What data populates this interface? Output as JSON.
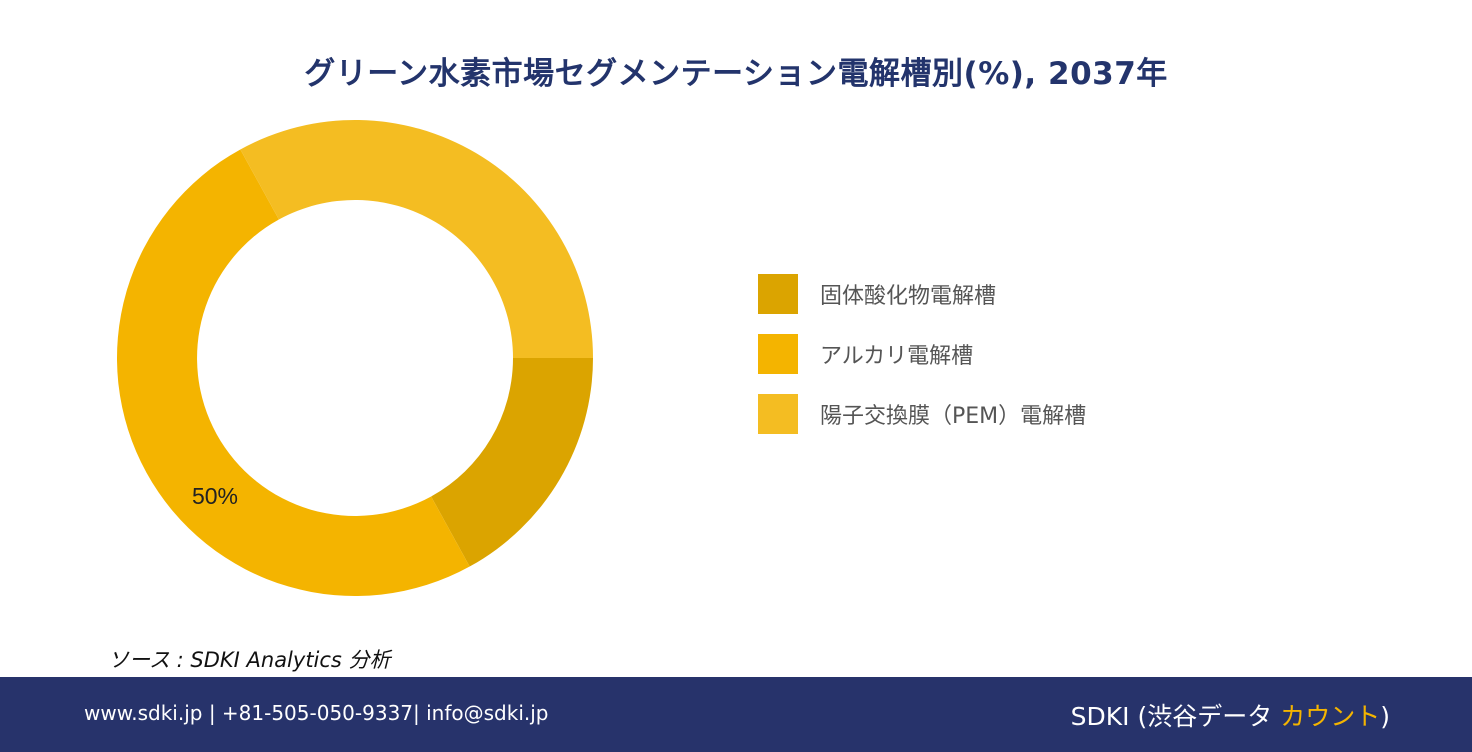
{
  "chart_data": {
    "type": "pie",
    "title": "グリーン水素市場セグメンテーション電解槽別(%), 2037年",
    "categories": [
      "固体酸化物電解槽",
      "アルカリ電解槽",
      "陽子交換膜（PEM）電解槽"
    ],
    "values": [
      17,
      50,
      33
    ],
    "colors": [
      "#dba400",
      "#f4b400",
      "#f4bd22"
    ],
    "data_labels": [
      "",
      "50%",
      ""
    ],
    "legend": "right",
    "donut": true
  },
  "source": "ソース : SDKI Analytics 分析",
  "footer": {
    "contact": "www.sdki.jp | +81-505-050-9337| info@sdki.jp",
    "brand_prefix": "SDKI (渋谷データ ",
    "brand_accent": "カウント",
    "brand_suffix": ")"
  }
}
